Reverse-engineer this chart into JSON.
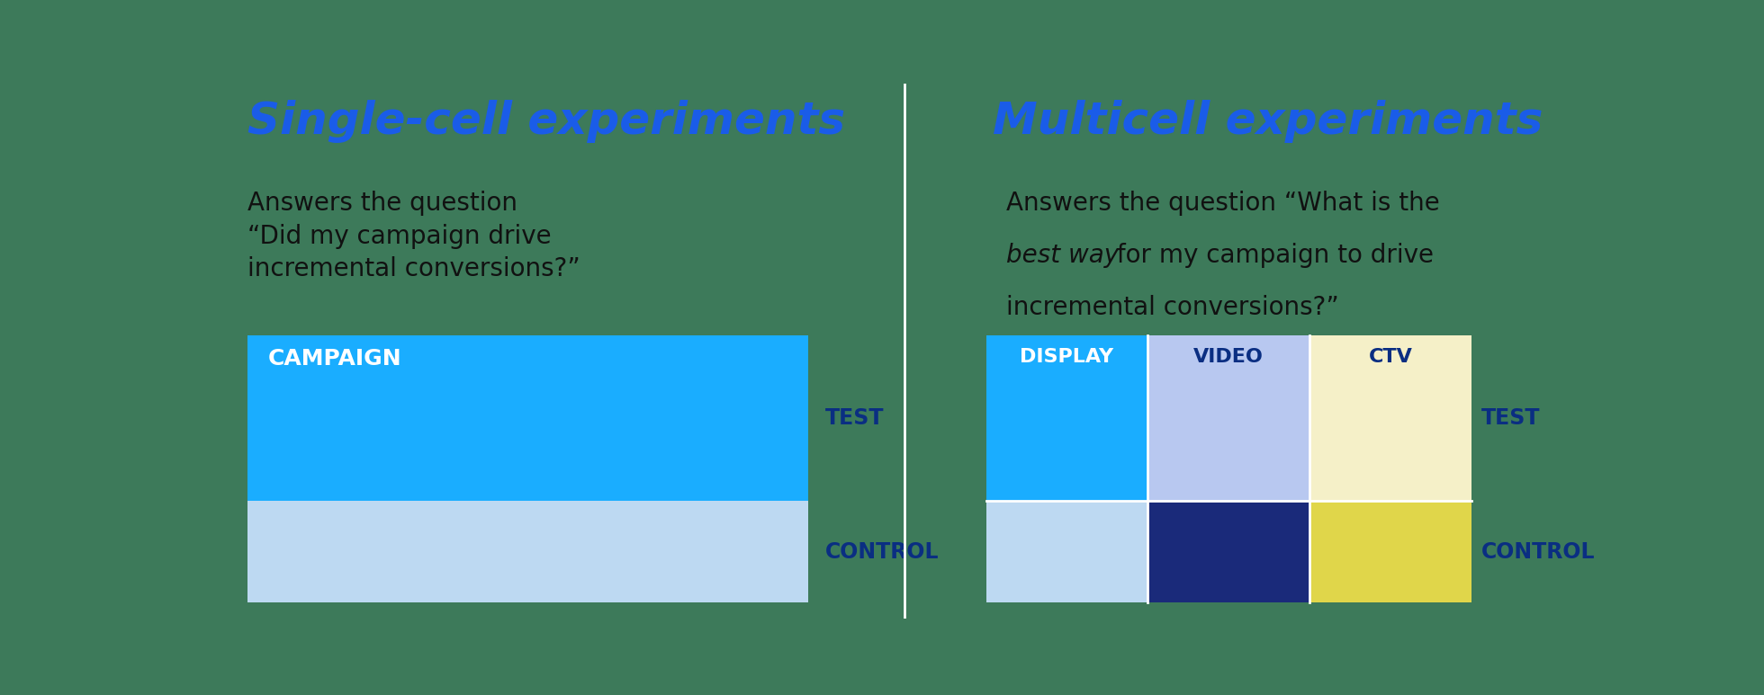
{
  "bg_color": "#3d7a5a",
  "left_title": "Single-cell experiments",
  "left_title_color": "#1a5ce8",
  "left_subtitle_line1": "Answers the question",
  "left_subtitle_line2": "“Did my campaign drive",
  "left_subtitle_line3": "incremental conversions?”",
  "left_subtitle_color": "#111111",
  "left_campaign_label": "CAMPAIGN",
  "left_test_label": "TEST",
  "left_control_label": "CONTROL",
  "left_test_color": "#1AADFF",
  "left_control_color": "#BDD9F2",
  "left_label_color_white": "#FFFFFF",
  "left_label_color_blue": "#0a2e82",
  "right_title": "Multicell experiments",
  "right_title_color": "#1a5ce8",
  "right_subtitle_line1": "Answers the question “What is the",
  "right_subtitle_line2_normal1": " for my campaign to drive",
  "right_subtitle_line2_italic": "best way",
  "right_subtitle_line3": "incremental conversions?”",
  "right_subtitle_color": "#111111",
  "right_col_labels": [
    "DISPLAY",
    "VIDEO",
    "CTV"
  ],
  "right_test_label": "TEST",
  "right_control_label": "CONTROL",
  "right_label_color_blue": "#0a2e82",
  "right_cells_top": [
    "#1AADFF",
    "#B8C8F0",
    "#F5F0C8"
  ],
  "right_cells_bottom": [
    "#BDD9F2",
    "#1A2A7A",
    "#E0D64A"
  ],
  "right_col_label_colors": [
    "#FFFFFF",
    "#0a2e82",
    "#0a2e82"
  ],
  "divider_color": "#FFFFFF"
}
